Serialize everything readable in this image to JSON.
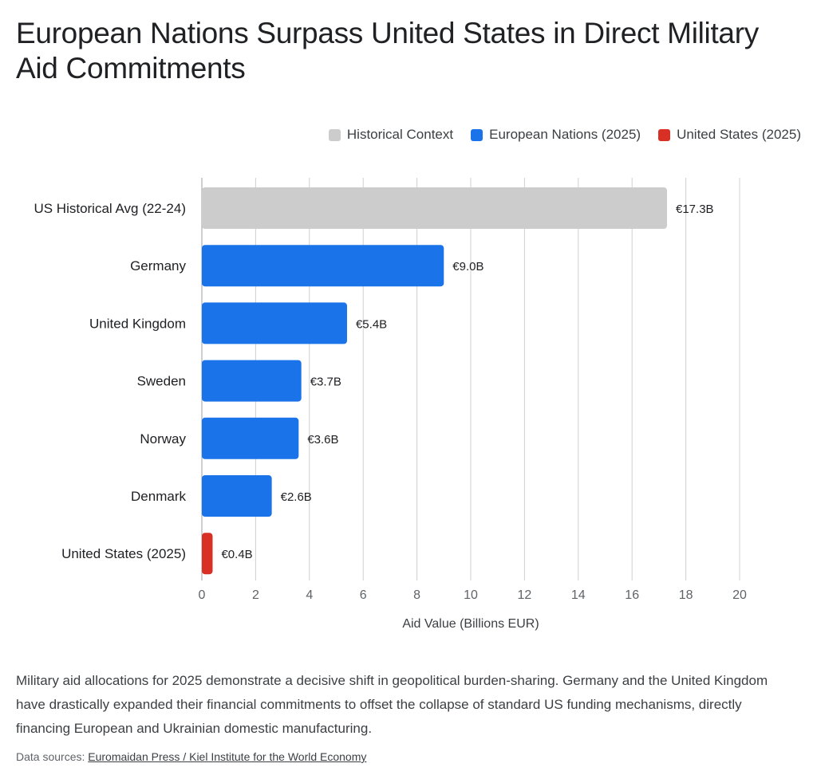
{
  "title": "European Nations Surpass United States in Direct Military Aid Commitments",
  "legend": [
    {
      "label": "Historical Context",
      "color": "#cccccc"
    },
    {
      "label": "European Nations (2025)",
      "color": "#1a73e8"
    },
    {
      "label": "United States (2025)",
      "color": "#d93025"
    }
  ],
  "chart_data": {
    "type": "bar",
    "orientation": "horizontal",
    "categories": [
      "US Historical Avg (22-24)",
      "Germany",
      "United Kingdom",
      "Sweden",
      "Norway",
      "Denmark",
      "United States (2025)"
    ],
    "values": [
      17.3,
      9.0,
      5.4,
      3.7,
      3.6,
      2.6,
      0.4
    ],
    "data_labels": [
      "€17.3B",
      "€9.0B",
      "€5.4B",
      "€3.7B",
      "€3.6B",
      "€2.6B",
      "€0.4B"
    ],
    "groups": [
      "Historical Context",
      "European Nations (2025)",
      "European Nations (2025)",
      "European Nations (2025)",
      "European Nations (2025)",
      "European Nations (2025)",
      "United States (2025)"
    ],
    "xlabel": "Aid Value (Billions EUR)",
    "ylabel": "",
    "xlim": [
      0,
      20
    ],
    "xticks": [
      0,
      2,
      4,
      6,
      8,
      10,
      12,
      14,
      16,
      18,
      20
    ],
    "grid": true,
    "legend_position": "top-right"
  },
  "description": "Military aid allocations for 2025 demonstrate a decisive shift in geopolitical burden-sharing. Germany and the United Kingdom have drastically expanded their financial commitments to offset the collapse of standard US funding mechanisms, directly financing European and Ukrainian domestic manufacturing.",
  "sources": {
    "prefix": "Data sources: ",
    "link_text": "Euromaidan Press / Kiel Institute for the World Economy"
  }
}
